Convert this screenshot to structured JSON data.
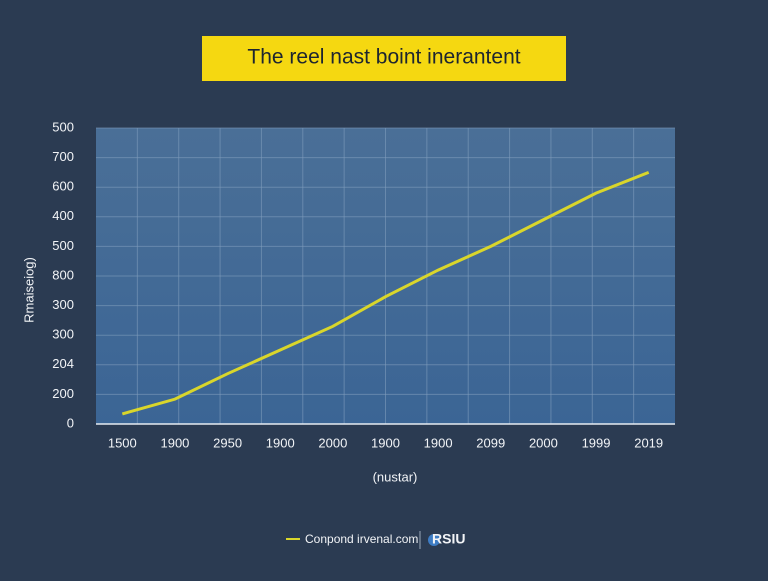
{
  "chart_data": {
    "type": "line",
    "title": "The reel nast boint inerantent",
    "y_label": "Rmaiseiog)",
    "x_label": "(nustar)",
    "categories": [
      "1500",
      "1900",
      "2950",
      "1900",
      "2000",
      "1900",
      "1900",
      "2099",
      "2000",
      "1999",
      "2019"
    ],
    "y_labels": [
      "0",
      "200",
      "204",
      "300",
      "300",
      "800",
      "500",
      "400",
      "600",
      "700",
      "500"
    ],
    "series": [
      {
        "name": "Conpond irvenal.com",
        "color": "#d9d62b",
        "values": [
          0.34,
          0.84,
          1.7,
          2.5,
          3.3,
          4.3,
          5.2,
          6.0,
          6.9,
          7.8,
          8.5
        ]
      }
    ],
    "brand": "RSIU",
    "grid": true
  }
}
